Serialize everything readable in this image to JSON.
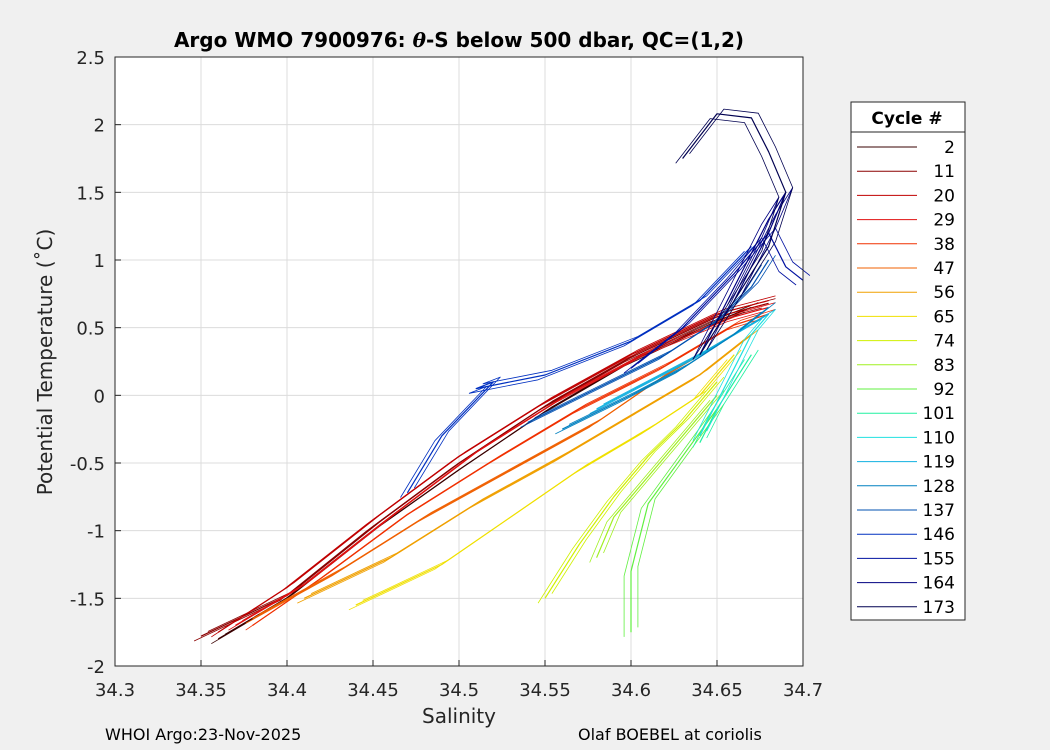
{
  "chart_data": {
    "type": "line",
    "title_prefix": "Argo WMO 7900976: ",
    "title_symbol": "θ",
    "title_suffix": "-S below 500 dbar,  QC=(1,2)",
    "xlabel": "Salinity",
    "ylabel": "Potential Temperature (˚C)",
    "xlim": [
      34.3,
      34.7
    ],
    "ylim": [
      -2,
      2.5
    ],
    "x_ticks": [
      34.3,
      34.35,
      34.4,
      34.45,
      34.5,
      34.55,
      34.6,
      34.65,
      34.7
    ],
    "x_tick_labels": [
      "34.3",
      "34.35",
      "34.4",
      "34.45",
      "34.5",
      "34.55",
      "34.6",
      "34.65",
      "34.7"
    ],
    "y_ticks": [
      -2,
      -1.5,
      -1,
      -0.5,
      0,
      0.5,
      1,
      1.5,
      2,
      2.5
    ],
    "y_tick_labels": [
      "-2",
      "-1.5",
      "-1",
      "-0.5",
      "0",
      "0.5",
      "1",
      "1.5",
      "2",
      "2.5"
    ],
    "grid": true,
    "legend": {
      "title": "Cycle #",
      "placement": "right-outside",
      "entries": [
        {
          "label": "2",
          "color": "#3a0000"
        },
        {
          "label": "11",
          "color": "#8b0000"
        },
        {
          "label": "20",
          "color": "#c00000"
        },
        {
          "label": "29",
          "color": "#e01010"
        },
        {
          "label": "38",
          "color": "#f03000"
        },
        {
          "label": "47",
          "color": "#f06000"
        },
        {
          "label": "56",
          "color": "#f0a000"
        },
        {
          "label": "65",
          "color": "#f0e000"
        },
        {
          "label": "74",
          "color": "#d0f000"
        },
        {
          "label": "83",
          "color": "#a0f020"
        },
        {
          "label": "92",
          "color": "#60f040"
        },
        {
          "label": "101",
          "color": "#20f0a0"
        },
        {
          "label": "110",
          "color": "#20e0e0"
        },
        {
          "label": "119",
          "color": "#10b0e0"
        },
        {
          "label": "128",
          "color": "#0080c0"
        },
        {
          "label": "137",
          "color": "#0050b0"
        },
        {
          "label": "146",
          "color": "#0030c0"
        },
        {
          "label": "155",
          "color": "#0010a0"
        },
        {
          "label": "164",
          "color": "#000080"
        },
        {
          "label": "173",
          "color": "#000050"
        }
      ]
    },
    "series": [
      {
        "name": "2",
        "color": "#3a0000",
        "x": [
          34.36,
          34.4,
          34.45,
          34.5,
          34.55,
          34.6,
          34.65,
          34.67
        ],
        "y": [
          -1.8,
          -1.5,
          -1.0,
          -0.55,
          -0.12,
          0.25,
          0.55,
          0.65
        ]
      },
      {
        "name": "11",
        "color": "#8b0000",
        "x": [
          34.35,
          34.4,
          34.45,
          34.5,
          34.55,
          34.6,
          34.65,
          34.68
        ],
        "y": [
          -1.78,
          -1.48,
          -0.97,
          -0.5,
          -0.08,
          0.28,
          0.58,
          0.68
        ]
      },
      {
        "name": "20",
        "color": "#c00000",
        "x": [
          34.36,
          34.4,
          34.45,
          34.5,
          34.55,
          34.6,
          34.65,
          34.68
        ],
        "y": [
          -1.75,
          -1.42,
          -0.92,
          -0.45,
          -0.05,
          0.3,
          0.6,
          0.7
        ]
      },
      {
        "name": "29",
        "color": "#e01010",
        "x": [
          34.37,
          34.41,
          34.46,
          34.51,
          34.56,
          34.61,
          34.66,
          34.68
        ],
        "y": [
          -1.7,
          -1.4,
          -0.9,
          -0.42,
          -0.02,
          0.32,
          0.58,
          0.65
        ]
      },
      {
        "name": "38",
        "color": "#f03000",
        "x": [
          34.38,
          34.42,
          34.47,
          34.52,
          34.57,
          34.62,
          34.66,
          34.68
        ],
        "y": [
          -1.7,
          -1.35,
          -0.88,
          -0.48,
          -0.1,
          0.22,
          0.52,
          0.6
        ]
      },
      {
        "name": "47",
        "color": "#f06000",
        "x": [
          34.38,
          34.43,
          34.48,
          34.53,
          34.58,
          34.62,
          34.66
        ],
        "y": [
          -1.65,
          -1.3,
          -0.9,
          -0.55,
          -0.2,
          0.15,
          0.45
        ]
      },
      {
        "name": "56",
        "color": "#f0a000",
        "x": [
          34.41,
          34.46,
          34.51,
          34.56,
          34.6,
          34.64,
          34.67
        ],
        "y": [
          -1.5,
          -1.2,
          -0.8,
          -0.45,
          -0.15,
          0.15,
          0.45
        ]
      },
      {
        "name": "65",
        "color": "#f0e000",
        "x": [
          34.44,
          34.49,
          34.53,
          34.57,
          34.61,
          34.64,
          34.66
        ],
        "y": [
          -1.55,
          -1.25,
          -0.9,
          -0.55,
          -0.25,
          0.0,
          0.3
        ]
      },
      {
        "name": "74",
        "color": "#d0f000",
        "x": [
          34.55,
          34.57,
          34.59,
          34.61,
          34.63,
          34.65
        ],
        "y": [
          -1.5,
          -1.1,
          -0.75,
          -0.45,
          -0.2,
          0.1
        ]
      },
      {
        "name": "83",
        "color": "#a0f020",
        "x": [
          34.58,
          34.59,
          34.61,
          34.63,
          34.65
        ],
        "y": [
          -1.2,
          -0.9,
          -0.6,
          -0.3,
          0.0
        ]
      },
      {
        "name": "92",
        "color": "#60f040",
        "x": [
          34.6,
          34.6,
          34.61,
          34.63,
          34.65
        ],
        "y": [
          -1.75,
          -1.3,
          -0.8,
          -0.45,
          -0.1
        ]
      },
      {
        "name": "101",
        "color": "#20f0a0",
        "x": [
          34.64,
          34.65,
          34.66,
          34.67
        ],
        "y": [
          -0.35,
          -0.1,
          0.1,
          0.3
        ]
      },
      {
        "name": "110",
        "color": "#20e0e0",
        "x": [
          34.64,
          34.65,
          34.66,
          34.67,
          34.68
        ],
        "y": [
          -0.3,
          -0.05,
          0.2,
          0.45,
          0.6
        ]
      },
      {
        "name": "119",
        "color": "#10b0e0",
        "x": [
          34.58,
          34.61,
          34.64,
          34.66,
          34.68
        ],
        "y": [
          -0.1,
          0.1,
          0.3,
          0.45,
          0.6
        ]
      },
      {
        "name": "128",
        "color": "#0080c0",
        "x": [
          34.56,
          34.6,
          34.63,
          34.66,
          34.68
        ],
        "y": [
          -0.25,
          0.0,
          0.2,
          0.45,
          0.65
        ]
      },
      {
        "name": "137",
        "color": "#0050b0",
        "x": [
          34.54,
          34.58,
          34.62,
          34.65,
          34.67,
          34.68
        ],
        "y": [
          -0.2,
          0.05,
          0.3,
          0.55,
          0.8,
          1.0
        ]
      },
      {
        "name": "146",
        "color": "#0030c0",
        "x": [
          34.47,
          34.49,
          34.52,
          34.51,
          34.55,
          34.6,
          34.64,
          34.67
        ],
        "y": [
          -0.72,
          -0.3,
          0.1,
          0.05,
          0.15,
          0.4,
          0.7,
          1.1
        ]
      },
      {
        "name": "155",
        "color": "#0010a0",
        "x": [
          34.6,
          34.63,
          34.66,
          34.68,
          34.69,
          34.7
        ],
        "y": [
          0.2,
          0.5,
          0.9,
          1.2,
          0.95,
          0.85
        ]
      },
      {
        "name": "164",
        "color": "#000080",
        "x": [
          34.64,
          34.66,
          34.68,
          34.69,
          34.68,
          34.66
        ],
        "y": [
          0.3,
          0.8,
          1.3,
          1.5,
          1.2,
          0.7
        ]
      },
      {
        "name": "173",
        "color": "#000050",
        "x": [
          34.63,
          34.65,
          34.67,
          34.68,
          34.69,
          34.68,
          34.66,
          34.64
        ],
        "y": [
          1.75,
          2.08,
          2.05,
          1.8,
          1.5,
          1.1,
          0.7,
          0.3
        ]
      }
    ]
  },
  "footer": {
    "left": "WHOI Argo:23-Nov-2025",
    "right": "Olaf BOEBEL at coriolis"
  }
}
